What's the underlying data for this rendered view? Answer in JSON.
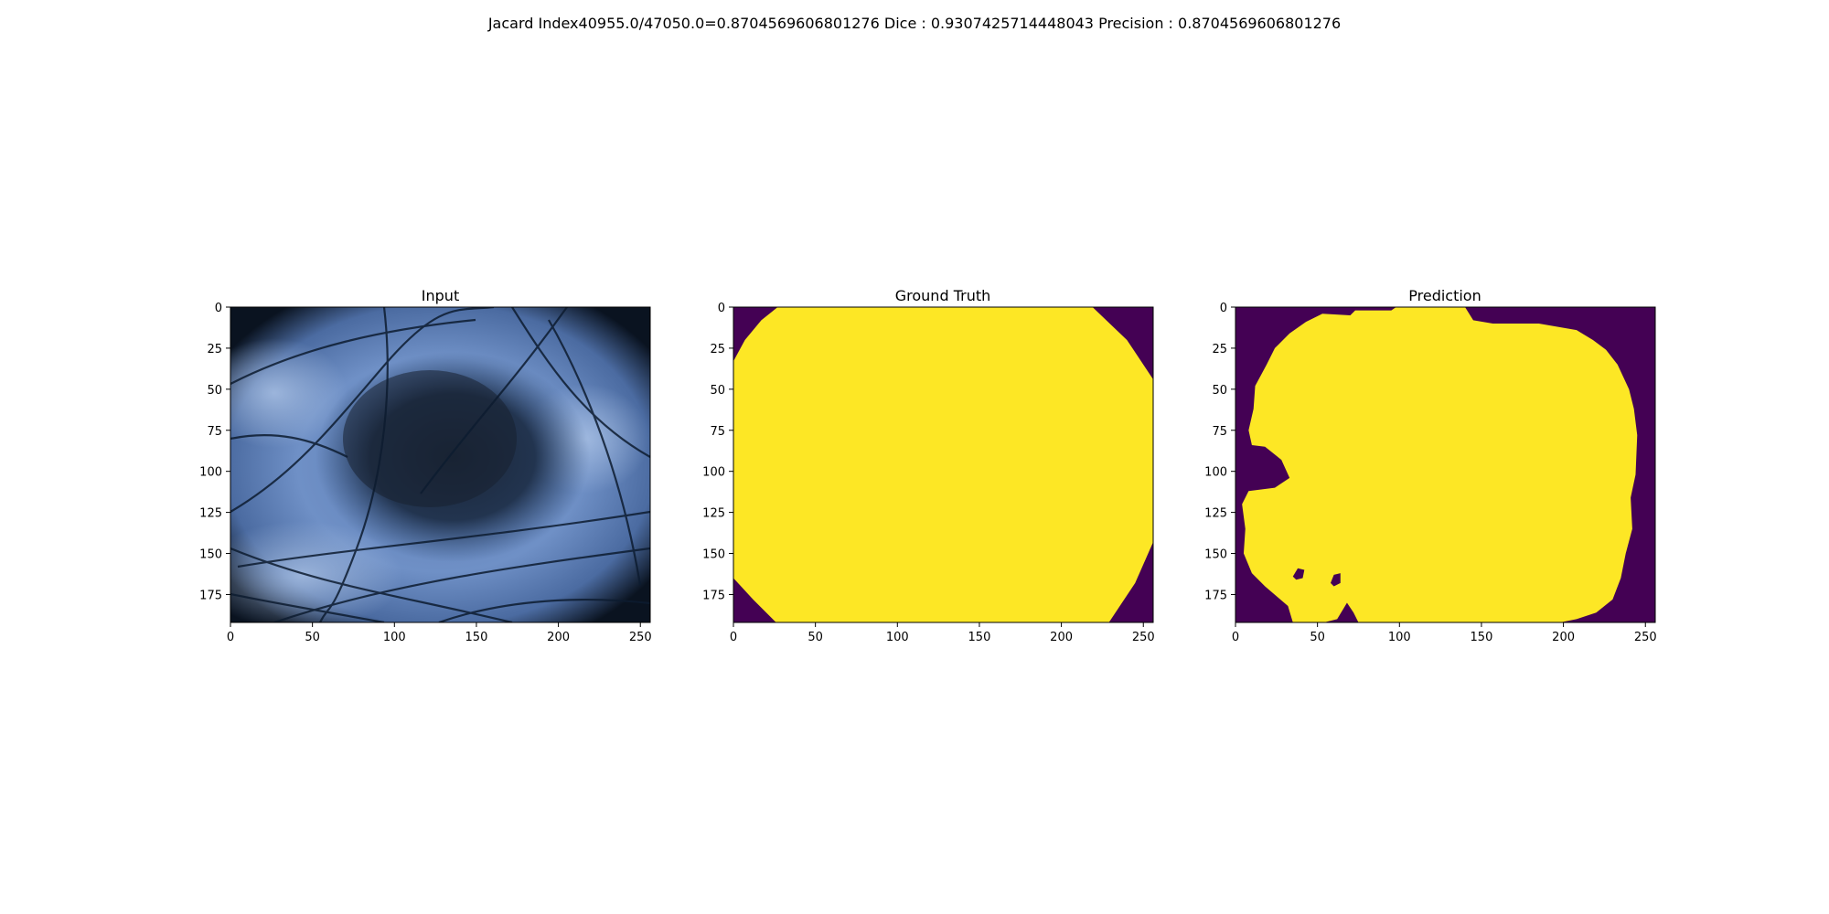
{
  "figure": {
    "suptitle": "Jacard Index40955.0/47050.0=0.8704569606801276 Dice : 0.9307425714448043 Precision : 0.8704569606801276"
  },
  "colors": {
    "mask_foreground": "#fde725",
    "mask_background": "#440154",
    "skin_light": "#9eb6da",
    "skin_mid": "#4f71a6",
    "lesion_dark": "#1b2a3f",
    "vignette": "#0a1320",
    "hair": "#0d1c30"
  },
  "chart_data": [
    {
      "type": "image",
      "title": "Input",
      "image_shape": [
        192,
        256
      ],
      "xlim": [
        0,
        256
      ],
      "ylim": [
        192,
        0
      ],
      "xticks": [
        0,
        50,
        100,
        150,
        200,
        250
      ],
      "yticks": [
        0,
        25,
        50,
        75,
        100,
        125,
        150,
        175
      ],
      "content": "dermoscopy image of skin lesion with hairs"
    },
    {
      "type": "image",
      "title": "Ground Truth",
      "image_shape": [
        192,
        256
      ],
      "xlim": [
        0,
        256
      ],
      "ylim": [
        192,
        0
      ],
      "xticks": [
        0,
        50,
        100,
        150,
        200,
        250
      ],
      "yticks": [
        0,
        25,
        50,
        75,
        100,
        125,
        150,
        175
      ],
      "colormap": "viridis",
      "mask_polygon": [
        [
          27,
          0
        ],
        [
          219,
          0
        ],
        [
          240,
          20
        ],
        [
          256,
          44
        ],
        [
          256,
          143
        ],
        [
          245,
          168
        ],
        [
          229,
          192
        ],
        [
          26,
          192
        ],
        [
          12,
          178
        ],
        [
          0,
          165
        ],
        [
          0,
          33
        ],
        [
          7,
          20
        ],
        [
          17,
          8
        ]
      ]
    },
    {
      "type": "image",
      "title": "Prediction",
      "image_shape": [
        192,
        256
      ],
      "xlim": [
        0,
        256
      ],
      "ylim": [
        192,
        0
      ],
      "xticks": [
        0,
        50,
        100,
        150,
        200,
        250
      ],
      "yticks": [
        0,
        25,
        50,
        75,
        100,
        125,
        150,
        175
      ],
      "colormap": "viridis",
      "mask_polygon": [
        [
          53,
          4
        ],
        [
          70,
          5
        ],
        [
          73,
          2
        ],
        [
          95,
          2
        ],
        [
          98,
          0
        ],
        [
          140,
          0
        ],
        [
          145,
          8
        ],
        [
          157,
          10
        ],
        [
          185,
          10
        ],
        [
          208,
          14
        ],
        [
          218,
          20
        ],
        [
          226,
          26
        ],
        [
          233,
          35
        ],
        [
          240,
          50
        ],
        [
          243,
          62
        ],
        [
          245,
          78
        ],
        [
          244,
          102
        ],
        [
          241,
          116
        ],
        [
          242,
          135
        ],
        [
          238,
          150
        ],
        [
          235,
          165
        ],
        [
          230,
          178
        ],
        [
          220,
          186
        ],
        [
          208,
          190
        ],
        [
          198,
          192
        ],
        [
          75,
          192
        ],
        [
          72,
          186
        ],
        [
          68,
          180
        ],
        [
          62,
          190
        ],
        [
          54,
          192
        ],
        [
          35,
          192
        ],
        [
          32,
          182
        ],
        [
          25,
          176
        ],
        [
          18,
          170
        ],
        [
          10,
          162
        ],
        [
          5,
          150
        ],
        [
          6,
          135
        ],
        [
          4,
          120
        ],
        [
          8,
          112
        ],
        [
          24,
          110
        ],
        [
          33,
          104
        ],
        [
          28,
          93
        ],
        [
          18,
          85
        ],
        [
          10,
          84
        ],
        [
          8,
          75
        ],
        [
          11,
          62
        ],
        [
          12,
          48
        ],
        [
          19,
          35
        ],
        [
          24,
          25
        ],
        [
          33,
          16
        ],
        [
          43,
          9
        ]
      ],
      "holes": [
        [
          [
            35,
            164
          ],
          [
            38,
            159
          ],
          [
            42,
            160
          ],
          [
            41,
            165
          ],
          [
            37,
            166
          ]
        ],
        [
          [
            58,
            168
          ],
          [
            60,
            163
          ],
          [
            64,
            162
          ],
          [
            64,
            168
          ],
          [
            60,
            170
          ]
        ]
      ]
    }
  ]
}
